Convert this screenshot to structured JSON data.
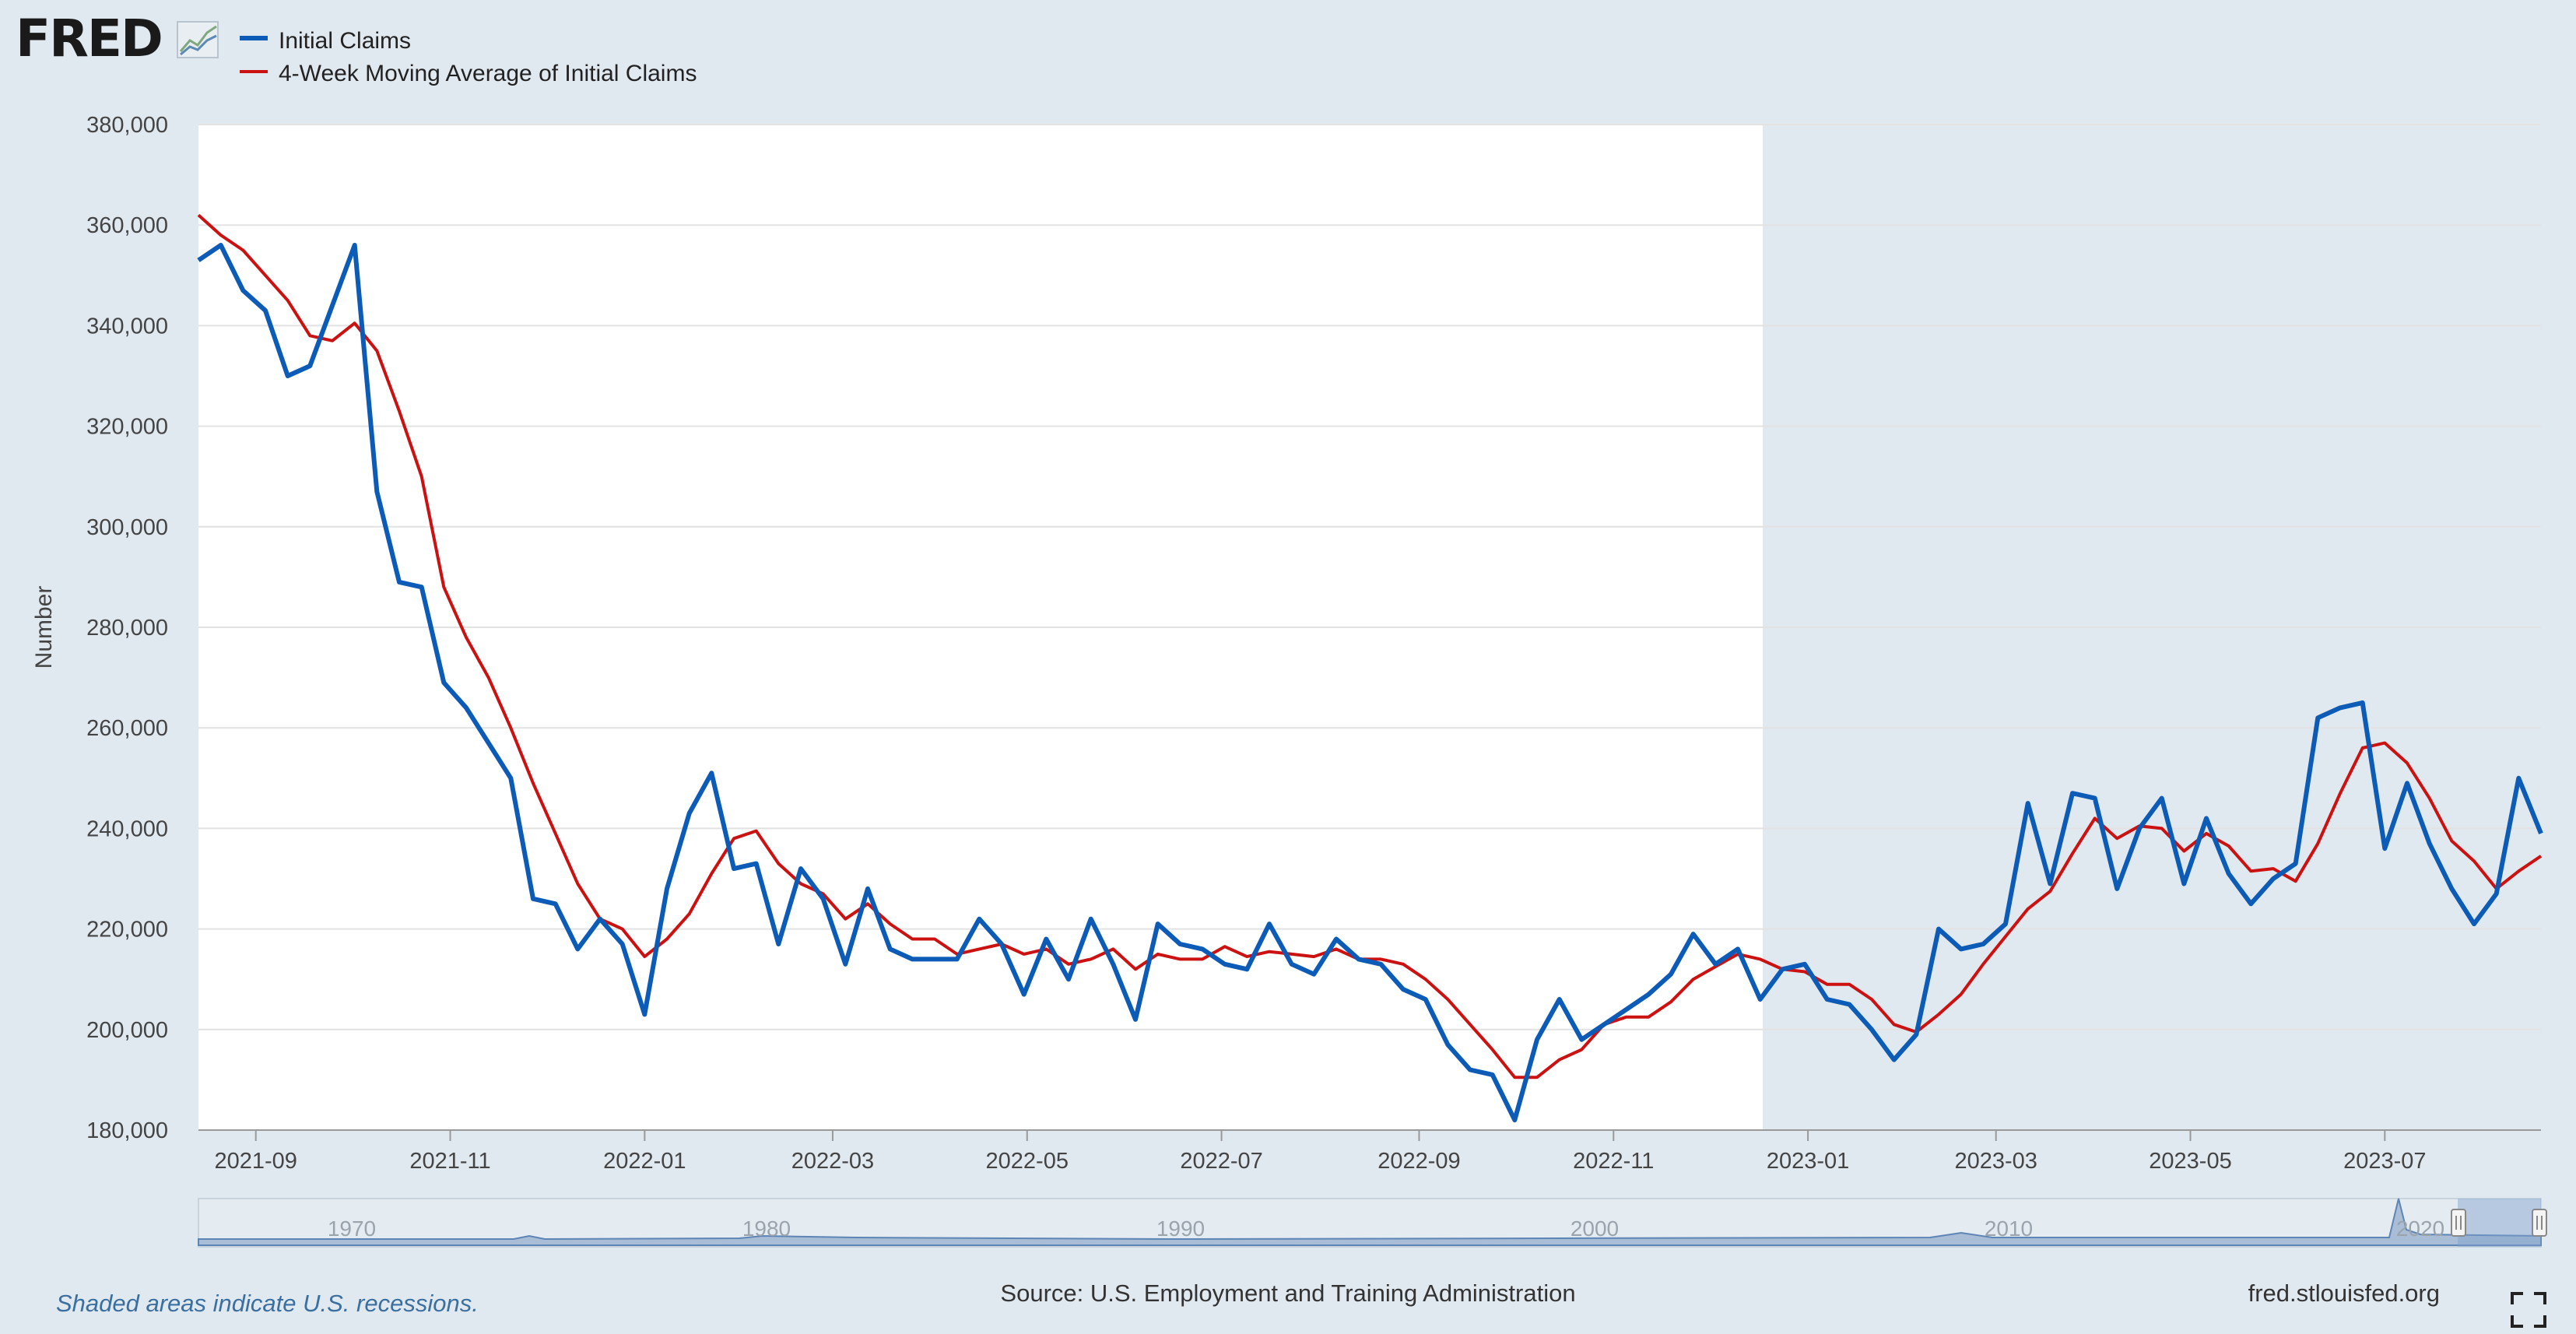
{
  "brand": {
    "logo_text": "FRED",
    "logo_icon": "line-chart-icon"
  },
  "legend": [
    {
      "label": "Initial Claims",
      "color": "#0c5bb7"
    },
    {
      "label": "4-Week Moving Average of Initial Claims",
      "color": "#cc1111"
    }
  ],
  "footer": {
    "recession_note": "Shaded areas indicate U.S. recessions.",
    "source": "Source: U.S. Employment and Training Administration",
    "site": "fred.stlouisfed.org",
    "fullscreen_icon": "fullscreen-icon"
  },
  "navigator": {
    "labels": [
      "1970",
      "1980",
      "1990",
      "2000",
      "2010",
      "2020"
    ],
    "handle_icon": "drag-handle-icon"
  },
  "chart_data": {
    "type": "line",
    "title": "",
    "xlabel": "",
    "ylabel": "Number",
    "ylim": [
      180000,
      380000
    ],
    "y_ticks": [
      180000,
      200000,
      220000,
      240000,
      260000,
      280000,
      300000,
      320000,
      340000,
      360000,
      380000
    ],
    "y_tick_labels": [
      "180,000",
      "200,000",
      "220,000",
      "240,000",
      "260,000",
      "280,000",
      "300,000",
      "320,000",
      "340,000",
      "360,000",
      "380,000"
    ],
    "x_range": [
      "2021-08-14",
      "2023-08-19"
    ],
    "x_ticks": [
      "2021-09-01",
      "2021-11-01",
      "2022-01-01",
      "2022-03-01",
      "2022-05-01",
      "2022-07-01",
      "2022-09-01",
      "2022-11-01",
      "2023-01-01",
      "2023-03-01",
      "2023-05-01",
      "2023-07-01"
    ],
    "x_tick_labels": [
      "2021-09",
      "2021-11",
      "2022-01",
      "2022-03",
      "2022-05",
      "2022-07",
      "2022-09",
      "2022-11",
      "2023-01",
      "2023-03",
      "2023-05",
      "2023-07"
    ],
    "grid": true,
    "legend_position": "top-left",
    "series": [
      {
        "name": "Initial Claims",
        "color": "#0c5bb7",
        "x": [
          "2021-08-14",
          "2021-08-21",
          "2021-08-28",
          "2021-09-04",
          "2021-09-11",
          "2021-09-18",
          "2021-09-25",
          "2021-10-02",
          "2021-10-09",
          "2021-10-16",
          "2021-10-23",
          "2021-10-30",
          "2021-11-06",
          "2021-11-13",
          "2021-11-20",
          "2021-11-27",
          "2021-12-04",
          "2021-12-11",
          "2021-12-18",
          "2021-12-25",
          "2022-01-01",
          "2022-01-08",
          "2022-01-15",
          "2022-01-22",
          "2022-01-29",
          "2022-02-05",
          "2022-02-12",
          "2022-02-19",
          "2022-02-26",
          "2022-03-05",
          "2022-03-12",
          "2022-03-19",
          "2022-03-26",
          "2022-04-02",
          "2022-04-09",
          "2022-04-16",
          "2022-04-23",
          "2022-04-30",
          "2022-05-07",
          "2022-05-14",
          "2022-05-21",
          "2022-05-28",
          "2022-06-04",
          "2022-06-11",
          "2022-06-18",
          "2022-06-25",
          "2022-07-02",
          "2022-07-09",
          "2022-07-16",
          "2022-07-23",
          "2022-07-30",
          "2022-08-06",
          "2022-08-13",
          "2022-08-20",
          "2022-08-27",
          "2022-09-03",
          "2022-09-10",
          "2022-09-17",
          "2022-09-24",
          "2022-10-01",
          "2022-10-08",
          "2022-10-15",
          "2022-10-22",
          "2022-10-29",
          "2022-11-05",
          "2022-11-12",
          "2022-11-19",
          "2022-11-26",
          "2022-12-03",
          "2022-12-10",
          "2022-12-17",
          "2022-12-24",
          "2022-12-31",
          "2023-01-07",
          "2023-01-14",
          "2023-01-21",
          "2023-01-28",
          "2023-02-04",
          "2023-02-11",
          "2023-02-18",
          "2023-02-25",
          "2023-03-04",
          "2023-03-11",
          "2023-03-18",
          "2023-03-25",
          "2023-04-01",
          "2023-04-08",
          "2023-04-15",
          "2023-04-22",
          "2023-04-29",
          "2023-05-06",
          "2023-05-13",
          "2023-05-20",
          "2023-05-27",
          "2023-06-03",
          "2023-06-10",
          "2023-06-17",
          "2023-06-24",
          "2023-07-01",
          "2023-07-08",
          "2023-07-15",
          "2023-07-22",
          "2023-07-29",
          "2023-08-05",
          "2023-08-12",
          "2023-08-19"
        ],
        "values": [
          353000,
          356000,
          347000,
          343000,
          330000,
          332000,
          344000,
          356000,
          307000,
          289000,
          288000,
          269000,
          264000,
          257000,
          250000,
          226000,
          225000,
          216000,
          222000,
          217000,
          203000,
          228000,
          243000,
          251000,
          232000,
          233000,
          217000,
          232000,
          226000,
          213000,
          228000,
          216000,
          214000,
          214000,
          214000,
          222000,
          217000,
          207000,
          218000,
          210000,
          222000,
          213000,
          202000,
          221000,
          217000,
          216000,
          213000,
          212000,
          221000,
          213000,
          211000,
          218000,
          214000,
          213000,
          208000,
          206000,
          197000,
          192000,
          191000,
          182000,
          198000,
          206000,
          198000,
          201000,
          204000,
          207000,
          211000,
          219000,
          213000,
          216000,
          206000,
          212000,
          213000,
          206000,
          205000,
          200000,
          194000,
          199000,
          220000,
          216000,
          217000,
          221000,
          245000,
          229000,
          247000,
          246000,
          228000,
          240000,
          246000,
          229000,
          242000,
          231000,
          225000,
          230000,
          233000,
          262000,
          264000,
          265000,
          236000,
          249000,
          237000,
          228000,
          221000,
          227000,
          250000,
          239000
        ]
      },
      {
        "name": "4-Week Moving Average of Initial Claims",
        "color": "#cc1111",
        "x": [
          "2021-08-14",
          "2021-08-21",
          "2021-08-28",
          "2021-09-04",
          "2021-09-11",
          "2021-09-18",
          "2021-09-25",
          "2021-10-02",
          "2021-10-09",
          "2021-10-16",
          "2021-10-23",
          "2021-10-30",
          "2021-11-06",
          "2021-11-13",
          "2021-11-20",
          "2021-11-27",
          "2021-12-04",
          "2021-12-11",
          "2021-12-18",
          "2021-12-25",
          "2022-01-01",
          "2022-01-08",
          "2022-01-15",
          "2022-01-22",
          "2022-01-29",
          "2022-02-05",
          "2022-02-12",
          "2022-02-19",
          "2022-02-26",
          "2022-03-05",
          "2022-03-12",
          "2022-03-19",
          "2022-03-26",
          "2022-04-02",
          "2022-04-09",
          "2022-04-16",
          "2022-04-23",
          "2022-04-30",
          "2022-05-07",
          "2022-05-14",
          "2022-05-21",
          "2022-05-28",
          "2022-06-04",
          "2022-06-11",
          "2022-06-18",
          "2022-06-25",
          "2022-07-02",
          "2022-07-09",
          "2022-07-16",
          "2022-07-23",
          "2022-07-30",
          "2022-08-06",
          "2022-08-13",
          "2022-08-20",
          "2022-08-27",
          "2022-09-03",
          "2022-09-10",
          "2022-09-17",
          "2022-09-24",
          "2022-10-01",
          "2022-10-08",
          "2022-10-15",
          "2022-10-22",
          "2022-10-29",
          "2022-11-05",
          "2022-11-12",
          "2022-11-19",
          "2022-11-26",
          "2022-12-03",
          "2022-12-10",
          "2022-12-17",
          "2022-12-24",
          "2022-12-31",
          "2023-01-07",
          "2023-01-14",
          "2023-01-21",
          "2023-01-28",
          "2023-02-04",
          "2023-02-11",
          "2023-02-18",
          "2023-02-25",
          "2023-03-04",
          "2023-03-11",
          "2023-03-18",
          "2023-03-25",
          "2023-04-01",
          "2023-04-08",
          "2023-04-15",
          "2023-04-22",
          "2023-04-29",
          "2023-05-06",
          "2023-05-13",
          "2023-05-20",
          "2023-05-27",
          "2023-06-03",
          "2023-06-10",
          "2023-06-17",
          "2023-06-24",
          "2023-07-01",
          "2023-07-08",
          "2023-07-15",
          "2023-07-22",
          "2023-07-29",
          "2023-08-05",
          "2023-08-12",
          "2023-08-19"
        ],
        "values": [
          362000,
          358000,
          355000,
          350000,
          345000,
          338000,
          337000,
          340500,
          335000,
          323000,
          310000,
          288000,
          278000,
          270000,
          260000,
          249000,
          239000,
          229000,
          222000,
          220000,
          214500,
          218000,
          223000,
          231000,
          238000,
          239500,
          233000,
          229000,
          227000,
          222000,
          225000,
          221000,
          218000,
          218000,
          215000,
          216000,
          217000,
          215000,
          216000,
          213000,
          214000,
          216000,
          212000,
          215000,
          214000,
          214000,
          216500,
          214500,
          215500,
          215000,
          214500,
          216000,
          214000,
          214000,
          213000,
          210000,
          206000,
          201000,
          196000,
          190500,
          190500,
          194000,
          196000,
          201000,
          202500,
          202500,
          205500,
          210000,
          212500,
          215000,
          214000,
          212000,
          211500,
          209000,
          209000,
          206000,
          201000,
          199500,
          203000,
          207000,
          213000,
          218500,
          224000,
          227500,
          235000,
          242000,
          238000,
          240500,
          240000,
          235500,
          239000,
          236500,
          231500,
          232000,
          229500,
          237000,
          247000,
          256000,
          257000,
          253000,
          246000,
          237500,
          233500,
          228000,
          231500,
          234500
        ]
      }
    ]
  }
}
